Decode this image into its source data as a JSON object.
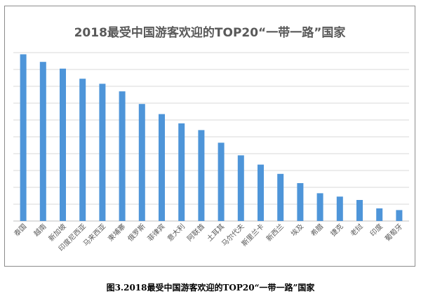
{
  "chart_data": {
    "type": "bar",
    "title": "2018最受中国游客欢迎的TOP20“一带一路”国家",
    "xlabel": "",
    "ylabel": "",
    "categories": [
      "泰国",
      "越南",
      "新加坡",
      "印度尼西亚",
      "马来西亚",
      "柬埔寨",
      "俄罗斯",
      "菲律宾",
      "意大利",
      "阿联酋",
      "土耳其",
      "马尔代夫",
      "斯里兰卡",
      "新西兰",
      "埃及",
      "希腊",
      "捷克",
      "老挝",
      "印度",
      "葡萄牙"
    ],
    "values": [
      19.8,
      18.9,
      18.1,
      16.9,
      16.3,
      15.4,
      13.9,
      12.7,
      11.6,
      10.8,
      9.3,
      7.8,
      6.7,
      5.6,
      4.5,
      3.3,
      2.9,
      2.5,
      1.5,
      1.3
    ],
    "ylim": [
      0,
      20
    ],
    "grid_step": 2,
    "grid": true,
    "bar_color": "#4e95d9",
    "grid_color": "#d9d9d9"
  },
  "caption": "图3.2018最受中国游客欢迎的TOP20“一带一路”国家"
}
